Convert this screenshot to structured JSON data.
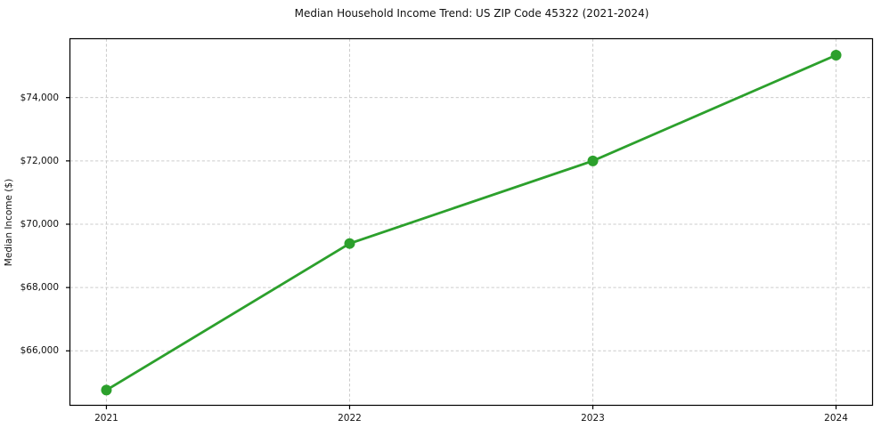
{
  "chart_data": {
    "type": "line",
    "title": "Median Household Income Trend: US ZIP Code 45322 (2021-2024)",
    "xlabel": "",
    "ylabel": "Median Income ($)",
    "x": [
      2021,
      2022,
      2023,
      2024
    ],
    "categories": [
      "2021",
      "2022",
      "2023",
      "2024"
    ],
    "values": [
      64760,
      69390,
      72000,
      75340
    ],
    "series_name": "Median Household Income",
    "yticks": [
      66000,
      68000,
      70000,
      72000,
      74000
    ],
    "ytick_labels": [
      "$66,000",
      "$68,000",
      "$70,000",
      "$72,000",
      "$74,000"
    ],
    "xlim": [
      2020.85,
      2024.15
    ],
    "ylim": [
      64280,
      75860
    ],
    "grid": true,
    "grid_style": "dashed",
    "legend": false,
    "line_color": "#2ca02c",
    "marker_color": "#2ca02c",
    "grid_color": "#cccccc",
    "spine_color": "#000000",
    "text_color": "#111111",
    "background_color": "#ffffff"
  }
}
